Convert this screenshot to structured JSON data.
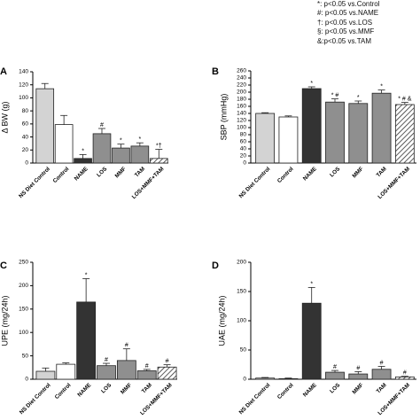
{
  "legend": [
    "*: p<0.05 vs.Control",
    "#: p<0.05 vs.NAME",
    "†: p<0.05 vs.LOS",
    "§: p<0.05 vs.MMF",
    "&:p<0.05 vs.TAM"
  ],
  "colors": {
    "light_gray": "#d3d3d3",
    "white": "#ffffff",
    "dark": "#333333",
    "mid_gray": "#8f8f8f",
    "axis": "#000000"
  },
  "chart_data": [
    {
      "type": "bar",
      "panel_label": "A",
      "ylabel": "Δ BW (g)",
      "categories": [
        "NS Diet Control",
        "Control",
        "NAME",
        "LOS",
        "MMF",
        "TAM",
        "LOS+MMF+TAM"
      ],
      "values": [
        114,
        59,
        7,
        45,
        23,
        26,
        7
      ],
      "errors": [
        8,
        14,
        6,
        8,
        6,
        5,
        14
      ],
      "annotations": [
        "",
        "",
        "*",
        "#",
        "*",
        "*",
        "*†"
      ],
      "yticks": [
        0,
        20,
        40,
        60,
        80,
        100,
        120,
        140
      ],
      "ylim": [
        0,
        140
      ]
    },
    {
      "type": "bar",
      "panel_label": "B",
      "ylabel": "SBP (mmHg)",
      "categories": [
        "NS Diet Control",
        "Control",
        "NAME",
        "LOS",
        "MMF",
        "TAM",
        "LOS+MMF+TAM"
      ],
      "values": [
        140,
        130,
        210,
        172,
        168,
        197,
        165
      ],
      "errors": [
        2,
        3,
        5,
        9,
        7,
        9,
        6
      ],
      "annotations": [
        "",
        "",
        "*",
        "* #",
        "*",
        "*",
        "* # &"
      ],
      "yticks": [
        0,
        20,
        40,
        60,
        80,
        100,
        120,
        140,
        160,
        180,
        200,
        220,
        240,
        260
      ],
      "ylim": [
        0,
        260
      ]
    },
    {
      "type": "bar",
      "panel_label": "C",
      "ylabel": "UPE (mg/24h)",
      "categories": [
        "NS Diet Control",
        "Control",
        "NAME",
        "LOS",
        "MMF",
        "TAM",
        "LOS+MMF+TAM"
      ],
      "values": [
        17,
        32,
        165,
        29,
        40,
        18,
        26
      ],
      "errors": [
        7,
        3,
        50,
        5,
        25,
        3,
        5
      ],
      "annotations": [
        "",
        "",
        "*",
        "#",
        "#",
        "#",
        "#"
      ],
      "yticks": [
        0,
        50,
        100,
        150,
        200,
        250
      ],
      "ylim": [
        0,
        250
      ]
    },
    {
      "type": "bar",
      "panel_label": "D",
      "ylabel": "UAE (mg/24h)",
      "categories": [
        "NS Diet Control",
        "Control",
        "NAME",
        "LOS",
        "MMF",
        "TAM",
        "LOS+MMF+TAM"
      ],
      "values": [
        2,
        1,
        130,
        12,
        9,
        17,
        4
      ],
      "errors": [
        1,
        1,
        27,
        3,
        4,
        5,
        1
      ],
      "annotations": [
        "",
        "",
        "*",
        "#",
        "#",
        "#",
        "#"
      ],
      "yticks": [
        0,
        50,
        100,
        150,
        200
      ],
      "ylim": [
        0,
        200
      ]
    }
  ]
}
